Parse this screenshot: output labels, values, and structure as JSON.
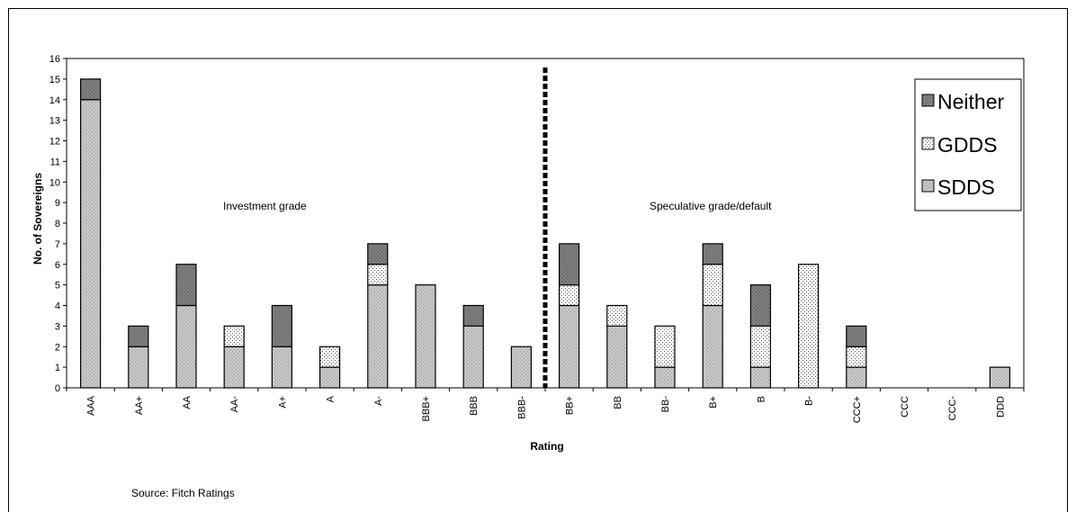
{
  "chart_data": {
    "type": "bar",
    "stacked": true,
    "categories": [
      "AAA",
      "AA+",
      "AA",
      "AA-",
      "A+",
      "A",
      "A-",
      "BBB+",
      "BBB",
      "BBB-",
      "BB+",
      "BB",
      "BB-",
      "B+",
      "B",
      "B-",
      "CCC+",
      "CCC",
      "CCC-",
      "DDD"
    ],
    "series": [
      {
        "name": "SDDS",
        "values": [
          14,
          2,
          4,
          2,
          2,
          1,
          5,
          5,
          3,
          2,
          4,
          3,
          1,
          4,
          1,
          0,
          1,
          0,
          0,
          1
        ]
      },
      {
        "name": "GDDS",
        "values": [
          0,
          0,
          0,
          1,
          0,
          1,
          1,
          0,
          0,
          0,
          1,
          1,
          2,
          2,
          2,
          6,
          1,
          0,
          0,
          0
        ]
      },
      {
        "name": "Neither",
        "values": [
          1,
          1,
          2,
          0,
          2,
          0,
          1,
          0,
          1,
          0,
          2,
          0,
          0,
          1,
          2,
          0,
          1,
          0,
          0,
          0
        ]
      }
    ],
    "xlabel": "Rating",
    "ylabel": "No. of Sovereigns",
    "ylim": [
      0,
      16
    ],
    "yticks": [
      0,
      1,
      2,
      3,
      4,
      5,
      6,
      7,
      8,
      9,
      10,
      11,
      12,
      13,
      14,
      15,
      16
    ],
    "legend": {
      "position": "top-right",
      "order": [
        "Neither",
        "GDDS",
        "SDDS"
      ]
    },
    "annotations": [
      "Investment grade",
      "Speculative grade/default"
    ],
    "divider_after": "BBB-",
    "grid": false
  },
  "source_note": "Source: Fitch Ratings",
  "colors": {
    "SDDS": "#c0c0c0",
    "GDDS": "#ffffff",
    "Neither": "#808080",
    "divider": "#000000"
  }
}
